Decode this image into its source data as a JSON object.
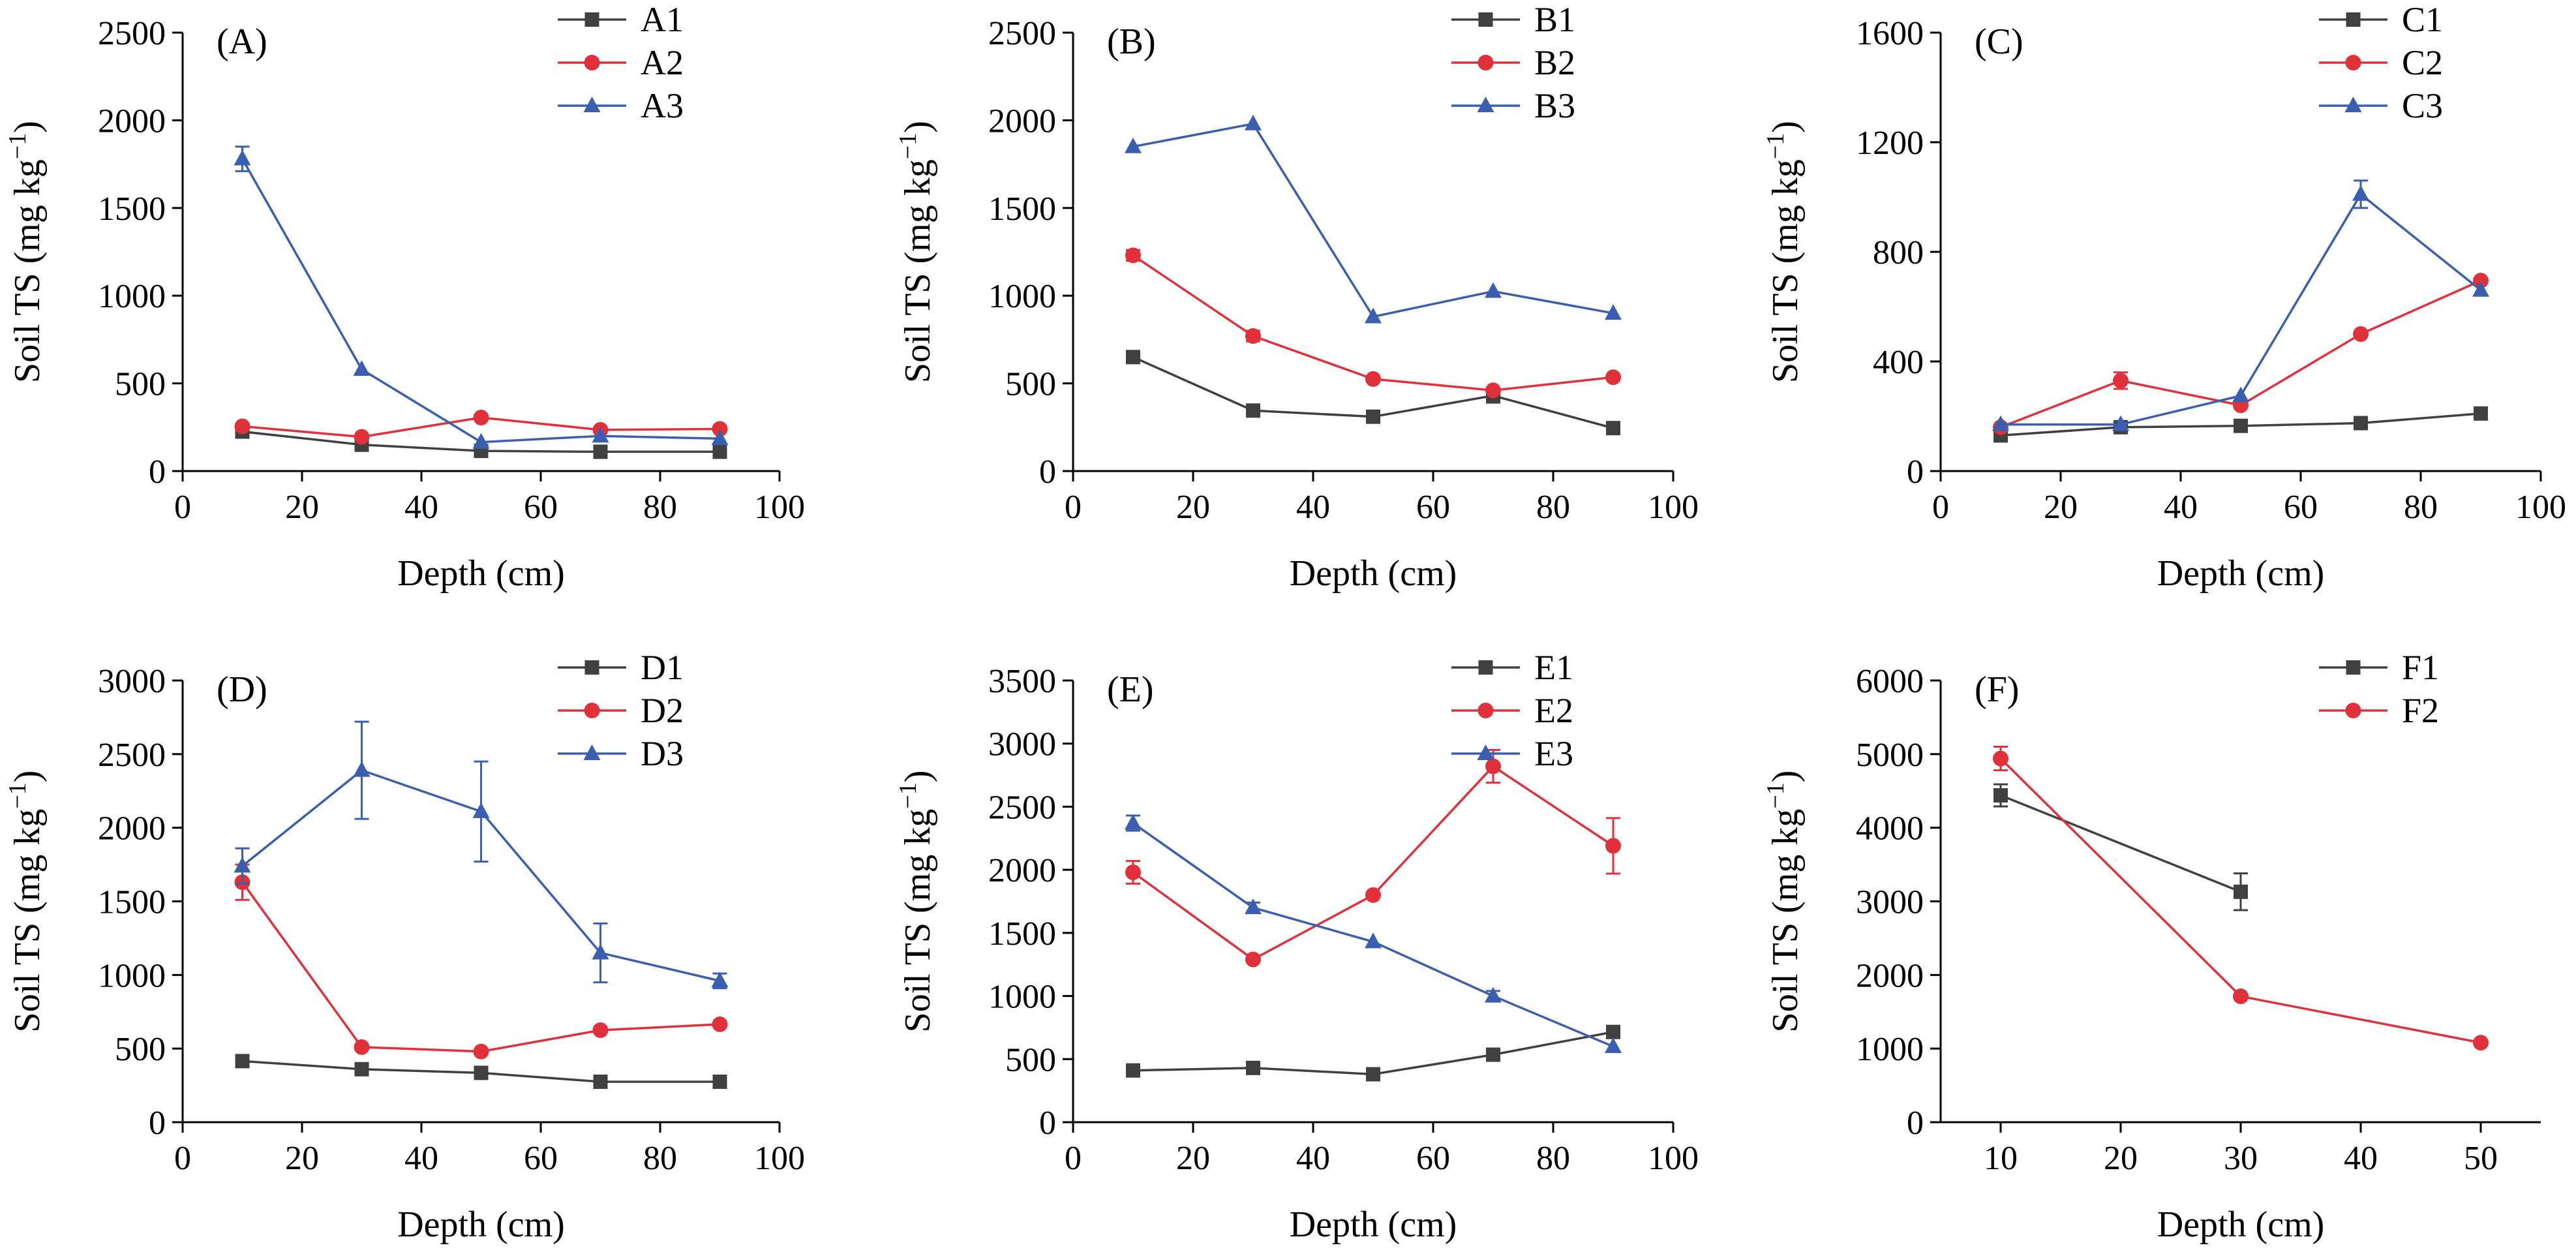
{
  "colors": {
    "s1": "#404040",
    "s2": "#e0313b",
    "s3": "#3a5fb0"
  },
  "markers": {
    "s1": "square",
    "s2": "circle",
    "s3": "triangle"
  },
  "chart_data": [
    {
      "type": "line",
      "label": "(A)",
      "xlabel": "Depth (cm)",
      "ylabel_main": "Soil TS (mg kg",
      "ylabel_sup": "−1",
      "ylabel_close": ")",
      "xlim": [
        0,
        100
      ],
      "xticks": [
        0,
        20,
        40,
        60,
        80,
        100
      ],
      "ylim": [
        0,
        2500
      ],
      "yticks": [
        0,
        500,
        1000,
        1500,
        2000,
        2500
      ],
      "series": [
        {
          "name": "A1",
          "x": [
            10,
            30,
            50,
            70,
            90
          ],
          "y": [
            225,
            150,
            115,
            110,
            110
          ],
          "err": [
            0,
            0,
            0,
            0,
            0
          ]
        },
        {
          "name": "A2",
          "x": [
            10,
            30,
            50,
            70,
            90
          ],
          "y": [
            255,
            195,
            305,
            235,
            240
          ],
          "err": [
            0,
            0,
            0,
            0,
            0
          ]
        },
        {
          "name": "A3",
          "x": [
            10,
            30,
            50,
            70,
            90
          ],
          "y": [
            1780,
            580,
            165,
            200,
            185
          ],
          "err": [
            70,
            0,
            0,
            0,
            0
          ]
        }
      ]
    },
    {
      "type": "line",
      "label": "(B)",
      "xlabel": "Depth (cm)",
      "ylabel_main": "Soil TS (mg kg",
      "ylabel_sup": "−1",
      "ylabel_close": ")",
      "xlim": [
        0,
        100
      ],
      "xticks": [
        0,
        20,
        40,
        60,
        80,
        100
      ],
      "ylim": [
        0,
        2500
      ],
      "yticks": [
        0,
        500,
        1000,
        1500,
        2000,
        2500
      ],
      "series": [
        {
          "name": "B1",
          "x": [
            10,
            30,
            50,
            70,
            90
          ],
          "y": [
            650,
            345,
            310,
            430,
            245
          ],
          "err": [
            0,
            0,
            0,
            40,
            0
          ]
        },
        {
          "name": "B2",
          "x": [
            10,
            30,
            50,
            70,
            90
          ],
          "y": [
            1230,
            770,
            525,
            460,
            535
          ],
          "err": [
            30,
            30,
            0,
            0,
            0
          ]
        },
        {
          "name": "B3",
          "x": [
            10,
            30,
            50,
            70,
            90
          ],
          "y": [
            1850,
            1980,
            880,
            1025,
            900
          ],
          "err": [
            0,
            0,
            0,
            0,
            0
          ]
        }
      ]
    },
    {
      "type": "line",
      "label": "(C)",
      "xlabel": "Depth (cm)",
      "ylabel_main": "Soil TS (mg kg",
      "ylabel_sup": "−1",
      "ylabel_close": ")",
      "xlim": [
        0,
        100
      ],
      "xticks": [
        0,
        20,
        40,
        60,
        80,
        100
      ],
      "ylim": [
        0,
        1600
      ],
      "yticks": [
        0,
        400,
        800,
        1200,
        1600
      ],
      "series": [
        {
          "name": "C1",
          "x": [
            10,
            30,
            50,
            70,
            90
          ],
          "y": [
            130,
            160,
            165,
            175,
            210
          ],
          "err": [
            0,
            0,
            0,
            0,
            0
          ]
        },
        {
          "name": "C2",
          "x": [
            10,
            30,
            50,
            70,
            90
          ],
          "y": [
            160,
            330,
            240,
            500,
            695
          ],
          "err": [
            0,
            30,
            0,
            0,
            0
          ]
        },
        {
          "name": "C3",
          "x": [
            10,
            30,
            50,
            70,
            90
          ],
          "y": [
            170,
            170,
            275,
            1010,
            660
          ],
          "err": [
            0,
            0,
            0,
            50,
            0
          ]
        }
      ]
    },
    {
      "type": "line",
      "label": "(D)",
      "xlabel": "Depth (cm)",
      "ylabel_main": "Soil TS (mg kg",
      "ylabel_sup": "−1",
      "ylabel_close": ")",
      "xlim": [
        0,
        100
      ],
      "xticks": [
        0,
        20,
        40,
        60,
        80,
        100
      ],
      "ylim": [
        0,
        3000
      ],
      "yticks": [
        0,
        500,
        1000,
        1500,
        2000,
        2500,
        3000
      ],
      "series": [
        {
          "name": "D1",
          "x": [
            10,
            30,
            50,
            70,
            90
          ],
          "y": [
            415,
            360,
            335,
            275,
            275
          ],
          "err": [
            0,
            0,
            0,
            0,
            0
          ]
        },
        {
          "name": "D2",
          "x": [
            10,
            30,
            50,
            70,
            90
          ],
          "y": [
            1630,
            510,
            480,
            625,
            665
          ],
          "err": [
            120,
            0,
            0,
            0,
            0
          ]
        },
        {
          "name": "D3",
          "x": [
            10,
            30,
            50,
            70,
            90
          ],
          "y": [
            1740,
            2390,
            2110,
            1150,
            960
          ],
          "err": [
            120,
            330,
            340,
            200,
            50
          ]
        }
      ]
    },
    {
      "type": "line",
      "label": "(E)",
      "xlabel": "Depth (cm)",
      "ylabel_main": "Soil TS (mg kg",
      "ylabel_sup": "−1",
      "ylabel_close": ")",
      "xlim": [
        0,
        100
      ],
      "xticks": [
        0,
        20,
        40,
        60,
        80,
        100
      ],
      "ylim": [
        0,
        3500
      ],
      "yticks": [
        0,
        500,
        1000,
        1500,
        2000,
        2500,
        3000,
        3500
      ],
      "series": [
        {
          "name": "E1",
          "x": [
            10,
            30,
            50,
            70,
            90
          ],
          "y": [
            410,
            430,
            380,
            535,
            715
          ],
          "err": [
            0,
            0,
            0,
            0,
            0
          ]
        },
        {
          "name": "E2",
          "x": [
            10,
            30,
            50,
            70,
            90
          ],
          "y": [
            1980,
            1290,
            1800,
            2820,
            2190
          ],
          "err": [
            90,
            0,
            0,
            130,
            220
          ]
        },
        {
          "name": "E3",
          "x": [
            10,
            30,
            50,
            70,
            90
          ],
          "y": [
            2370,
            1700,
            1430,
            1000,
            600
          ],
          "err": [
            60,
            40,
            0,
            40,
            0
          ]
        }
      ]
    },
    {
      "type": "line",
      "label": "(F)",
      "xlabel": "Depth (cm)",
      "ylabel_main": "Soil TS (mg kg",
      "ylabel_sup": "−1",
      "ylabel_close": ")",
      "xlim": [
        5,
        55
      ],
      "xticks": [
        10,
        20,
        30,
        40,
        50
      ],
      "ylim": [
        0,
        6000
      ],
      "yticks": [
        0,
        1000,
        2000,
        3000,
        4000,
        5000,
        6000
      ],
      "series": [
        {
          "name": "F1",
          "x": [
            10,
            30
          ],
          "y": [
            4440,
            3130
          ],
          "err": [
            150,
            250
          ]
        },
        {
          "name": "F2",
          "x": [
            10,
            30,
            50
          ],
          "y": [
            4940,
            1710,
            1080
          ],
          "err": [
            160,
            0,
            0
          ]
        }
      ]
    }
  ]
}
